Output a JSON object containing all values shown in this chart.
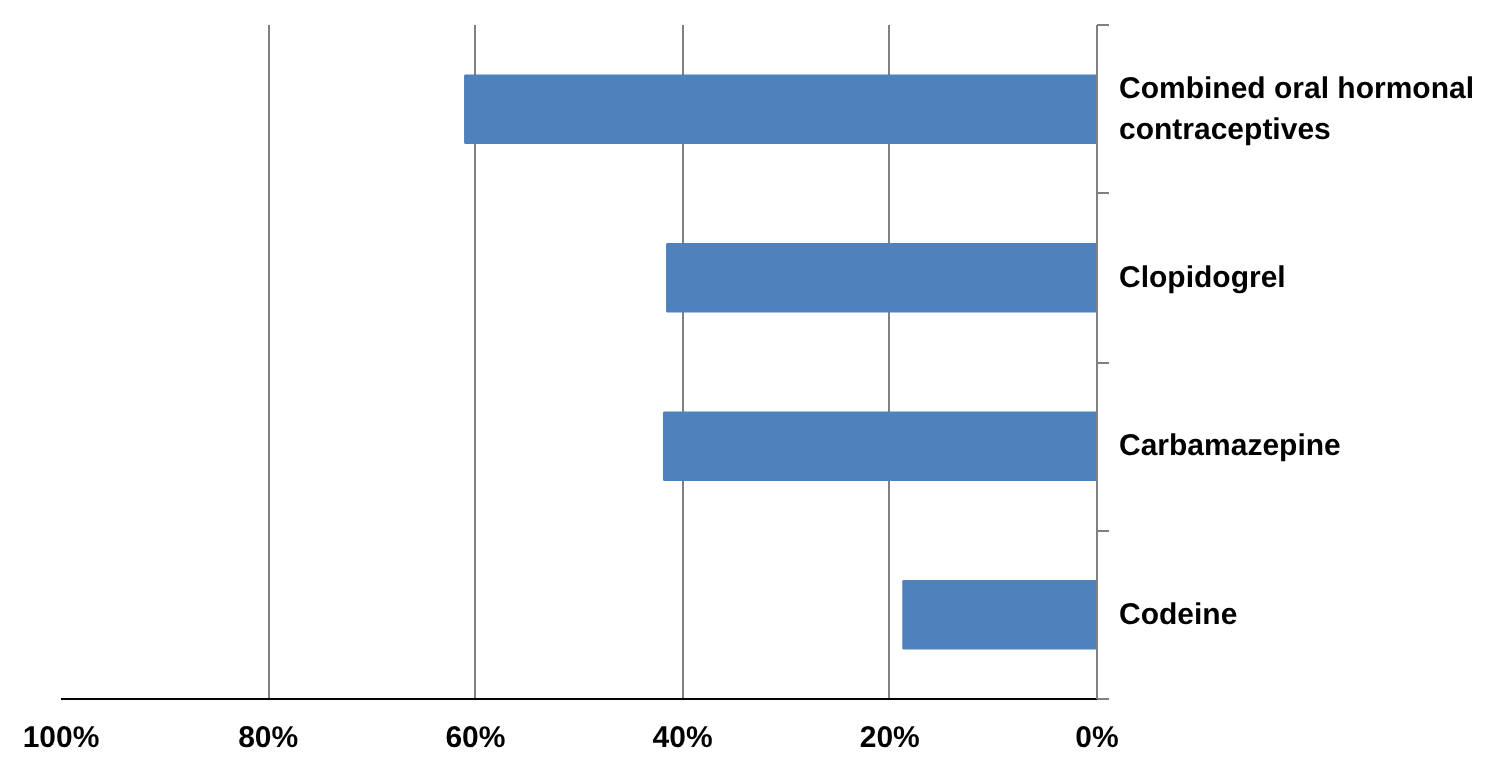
{
  "chart_data": {
    "type": "bar",
    "orientation": "horizontal",
    "categories": [
      "Combined oral hormonal contraceptives",
      "Clopidogrel",
      "Carbamazepine",
      "Codeine"
    ],
    "values": [
      61,
      41.5,
      41.8,
      18.7
    ],
    "color": "#4f81bd",
    "xlim": [
      100,
      0
    ],
    "xticks": [
      {
        "value": 100,
        "label": "100%"
      },
      {
        "value": 80,
        "label": "80%"
      },
      {
        "value": 60,
        "label": "60%"
      },
      {
        "value": 40,
        "label": "40%"
      },
      {
        "value": 20,
        "label": "20%"
      },
      {
        "value": 0,
        "label": "0%"
      }
    ],
    "grid": "x"
  }
}
